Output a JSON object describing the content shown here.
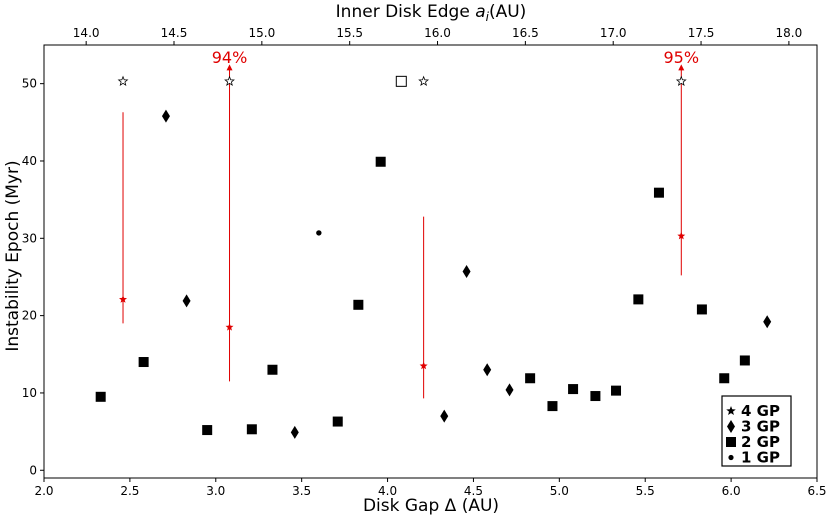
{
  "chart_data": {
    "type": "scatter",
    "xlabel": "Disk Gap Δ (AU)",
    "ylabel": "Instability Epoch (Myr)",
    "top_xlabel": "Inner Disk Edge",
    "top_xlabel_symbol": "a",
    "top_xlabel_sub": "i",
    "top_xlabel_unit": "(AU)",
    "xlim": [
      2.0,
      6.5
    ],
    "ylim": [
      -1,
      55
    ],
    "xticks": [
      "2.0",
      "2.5",
      "3.0",
      "3.5",
      "4.0",
      "4.5",
      "5.0",
      "5.5",
      "6.0",
      "6.5"
    ],
    "yticks": [
      "0",
      "10",
      "20",
      "30",
      "40",
      "50"
    ],
    "top_xlim": [
      13.76,
      18.16
    ],
    "top_xticks": [
      "14.0",
      "14.5",
      "15.0",
      "15.5",
      "16.0",
      "16.5",
      "17.0",
      "17.5",
      "18.0"
    ],
    "grid": false,
    "legend": {
      "placement": "bottom-right",
      "entries": [
        {
          "marker": "star",
          "label": "4 GP"
        },
        {
          "marker": "diamond",
          "label": "3 GP"
        },
        {
          "marker": "square",
          "label": "2 GP"
        },
        {
          "marker": "dot",
          "label": "1 GP"
        }
      ]
    },
    "series": [
      {
        "marker": "square",
        "color": "#000000",
        "x": [
          2.33,
          2.58,
          2.95,
          3.21,
          3.33,
          3.71,
          3.83,
          3.96,
          4.83,
          4.96,
          5.08,
          5.21,
          5.33,
          5.46,
          5.58,
          5.83,
          5.96,
          6.08
        ],
        "y": [
          9.5,
          14.0,
          5.2,
          5.3,
          13.0,
          6.3,
          21.4,
          39.9,
          11.9,
          8.3,
          10.5,
          9.6,
          10.3,
          22.1,
          35.9,
          20.8,
          11.9,
          14.2
        ]
      },
      {
        "marker": "diamond",
        "color": "#000000",
        "x": [
          2.71,
          2.83,
          3.46,
          4.33,
          4.46,
          4.58,
          4.71,
          6.21
        ],
        "y": [
          45.8,
          21.9,
          4.9,
          7.0,
          25.7,
          13.0,
          10.4,
          19.2
        ]
      },
      {
        "marker": "dot",
        "color": "#000000",
        "x": [
          3.6
        ],
        "y": [
          30.7
        ]
      },
      {
        "marker": "star",
        "color": "#e00000",
        "x": [
          2.46,
          3.08,
          4.21,
          5.71
        ],
        "y": [
          22.1,
          18.5,
          13.5,
          30.3
        ]
      },
      {
        "marker": "open-star",
        "color": "#000000",
        "x": [
          2.46,
          3.08,
          4.21,
          5.71
        ],
        "y": [
          50.3,
          50.3,
          50.3,
          50.3
        ]
      },
      {
        "marker": "open-square",
        "color": "#000000",
        "x": [
          4.08
        ],
        "y": [
          50.3
        ]
      }
    ],
    "error_bars": [
      {
        "x": 2.46,
        "y_low": 19.0,
        "y_high": 46.3,
        "arrow": false
      },
      {
        "x": 3.08,
        "y_low": 11.5,
        "y_high": 52.5,
        "arrow": true
      },
      {
        "x": 4.21,
        "y_low": 9.3,
        "y_high": 32.8,
        "arrow": false
      },
      {
        "x": 5.71,
        "y_low": 25.2,
        "y_high": 52.5,
        "arrow": true
      }
    ],
    "annotations": [
      {
        "text": "94%",
        "x": 3.08,
        "y": 52.7,
        "color": "#e00000"
      },
      {
        "text": "95%",
        "x": 5.71,
        "y": 52.7,
        "color": "#e00000"
      }
    ]
  }
}
